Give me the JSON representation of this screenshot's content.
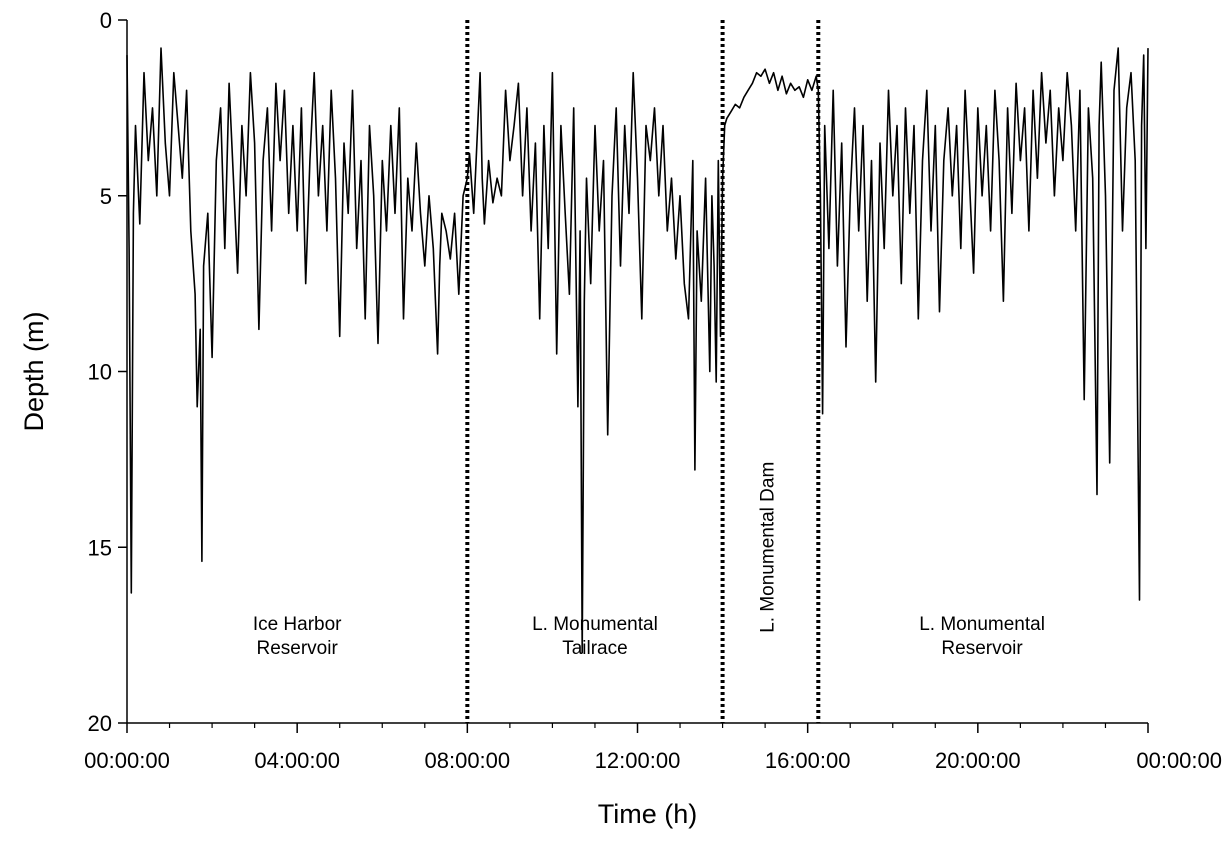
{
  "chart_data": {
    "type": "line",
    "xlabel": "Time (h)",
    "ylabel": "Depth (m)",
    "xlim": [
      0,
      24
    ],
    "ylim": [
      0,
      20
    ],
    "y_inverted": true,
    "grid": false,
    "legend": "none",
    "x_ticks": [
      {
        "value": 0,
        "label": "00:00:00"
      },
      {
        "value": 4,
        "label": "04:00:00"
      },
      {
        "value": 8,
        "label": "08:00:00"
      },
      {
        "value": 12,
        "label": "12:00:00"
      },
      {
        "value": 16,
        "label": "16:00:00"
      },
      {
        "value": 20,
        "label": "20:00:00"
      },
      {
        "value": 24,
        "label": "00:00:00"
      }
    ],
    "y_ticks": [
      {
        "value": 0,
        "label": "0"
      },
      {
        "value": 5,
        "label": "5"
      },
      {
        "value": 10,
        "label": "10"
      },
      {
        "value": 15,
        "label": "15"
      },
      {
        "value": 20,
        "label": "20"
      }
    ],
    "boundaries": [
      8.0,
      14.0,
      16.25
    ],
    "regions": [
      {
        "lines": [
          "Ice Harbor",
          "Reservoir"
        ],
        "x": 4.0,
        "y": 17.7,
        "rotated": false
      },
      {
        "lines": [
          "L. Monumental",
          "Tailrace"
        ],
        "x": 11.0,
        "y": 17.7,
        "rotated": false
      },
      {
        "lines": [
          "L. Monumental Dam"
        ],
        "x": 15.2,
        "y": 15.0,
        "rotated": true
      },
      {
        "lines": [
          "L. Monumental",
          "Reservoir"
        ],
        "x": 20.1,
        "y": 17.7,
        "rotated": false
      }
    ],
    "series": [
      {
        "values": [
          [
            0.0,
            1.0
          ],
          [
            0.05,
            6.5
          ],
          [
            0.1,
            16.3
          ],
          [
            0.15,
            5.5
          ],
          [
            0.2,
            3.0
          ],
          [
            0.3,
            5.8
          ],
          [
            0.4,
            1.5
          ],
          [
            0.5,
            4.0
          ],
          [
            0.6,
            2.5
          ],
          [
            0.7,
            5.0
          ],
          [
            0.8,
            0.8
          ],
          [
            0.9,
            3.5
          ],
          [
            1.0,
            5.0
          ],
          [
            1.1,
            1.5
          ],
          [
            1.2,
            3.0
          ],
          [
            1.3,
            4.5
          ],
          [
            1.4,
            2.0
          ],
          [
            1.5,
            6.0
          ],
          [
            1.6,
            7.8
          ],
          [
            1.65,
            11.0
          ],
          [
            1.72,
            8.8
          ],
          [
            1.76,
            15.4
          ],
          [
            1.8,
            7.0
          ],
          [
            1.9,
            5.5
          ],
          [
            2.0,
            9.6
          ],
          [
            2.1,
            4.0
          ],
          [
            2.2,
            2.5
          ],
          [
            2.3,
            6.5
          ],
          [
            2.4,
            1.8
          ],
          [
            2.5,
            4.5
          ],
          [
            2.6,
            7.2
          ],
          [
            2.7,
            3.0
          ],
          [
            2.8,
            5.0
          ],
          [
            2.9,
            1.5
          ],
          [
            3.0,
            3.5
          ],
          [
            3.1,
            8.8
          ],
          [
            3.2,
            4.0
          ],
          [
            3.3,
            2.5
          ],
          [
            3.4,
            6.0
          ],
          [
            3.5,
            1.8
          ],
          [
            3.6,
            4.0
          ],
          [
            3.7,
            2.0
          ],
          [
            3.8,
            5.5
          ],
          [
            3.9,
            3.0
          ],
          [
            4.0,
            6.0
          ],
          [
            4.1,
            2.5
          ],
          [
            4.2,
            7.5
          ],
          [
            4.3,
            4.0
          ],
          [
            4.4,
            1.5
          ],
          [
            4.5,
            5.0
          ],
          [
            4.6,
            3.0
          ],
          [
            4.7,
            6.0
          ],
          [
            4.8,
            2.0
          ],
          [
            4.9,
            4.5
          ],
          [
            5.0,
            9.0
          ],
          [
            5.1,
            3.5
          ],
          [
            5.2,
            5.5
          ],
          [
            5.3,
            2.0
          ],
          [
            5.4,
            6.5
          ],
          [
            5.5,
            4.0
          ],
          [
            5.6,
            8.5
          ],
          [
            5.7,
            3.0
          ],
          [
            5.8,
            5.0
          ],
          [
            5.9,
            9.2
          ],
          [
            6.0,
            4.0
          ],
          [
            6.1,
            6.0
          ],
          [
            6.2,
            3.0
          ],
          [
            6.3,
            5.5
          ],
          [
            6.4,
            2.5
          ],
          [
            6.5,
            8.5
          ],
          [
            6.6,
            4.5
          ],
          [
            6.7,
            6.0
          ],
          [
            6.8,
            3.5
          ],
          [
            6.9,
            5.5
          ],
          [
            7.0,
            7.0
          ],
          [
            7.1,
            5.0
          ],
          [
            7.2,
            6.5
          ],
          [
            7.3,
            9.5
          ],
          [
            7.35,
            7.0
          ],
          [
            7.4,
            5.5
          ],
          [
            7.5,
            6.0
          ],
          [
            7.6,
            6.8
          ],
          [
            7.7,
            5.5
          ],
          [
            7.8,
            7.8
          ],
          [
            7.9,
            5.0
          ],
          [
            8.0,
            4.5
          ],
          [
            8.05,
            3.8
          ],
          [
            8.15,
            5.5
          ],
          [
            8.2,
            4.2
          ],
          [
            8.3,
            1.5
          ],
          [
            8.35,
            4.5
          ],
          [
            8.4,
            5.8
          ],
          [
            8.5,
            4.0
          ],
          [
            8.6,
            5.2
          ],
          [
            8.7,
            4.5
          ],
          [
            8.8,
            5.0
          ],
          [
            8.9,
            2.0
          ],
          [
            9.0,
            4.0
          ],
          [
            9.1,
            3.0
          ],
          [
            9.2,
            1.8
          ],
          [
            9.3,
            5.0
          ],
          [
            9.4,
            2.5
          ],
          [
            9.5,
            6.0
          ],
          [
            9.6,
            3.5
          ],
          [
            9.7,
            8.5
          ],
          [
            9.8,
            3.0
          ],
          [
            9.9,
            6.5
          ],
          [
            10.0,
            1.5
          ],
          [
            10.1,
            9.5
          ],
          [
            10.2,
            3.0
          ],
          [
            10.3,
            5.5
          ],
          [
            10.4,
            7.8
          ],
          [
            10.5,
            2.5
          ],
          [
            10.6,
            11.0
          ],
          [
            10.65,
            6.0
          ],
          [
            10.7,
            18.0
          ],
          [
            10.75,
            8.0
          ],
          [
            10.8,
            4.5
          ],
          [
            10.9,
            7.5
          ],
          [
            11.0,
            3.0
          ],
          [
            11.1,
            6.0
          ],
          [
            11.2,
            4.0
          ],
          [
            11.3,
            11.8
          ],
          [
            11.4,
            5.0
          ],
          [
            11.5,
            2.5
          ],
          [
            11.6,
            7.0
          ],
          [
            11.7,
            3.0
          ],
          [
            11.8,
            5.5
          ],
          [
            11.9,
            1.5
          ],
          [
            12.0,
            4.5
          ],
          [
            12.1,
            8.5
          ],
          [
            12.2,
            3.0
          ],
          [
            12.3,
            4.0
          ],
          [
            12.4,
            2.5
          ],
          [
            12.5,
            5.0
          ],
          [
            12.6,
            3.0
          ],
          [
            12.7,
            6.0
          ],
          [
            12.8,
            4.5
          ],
          [
            12.9,
            6.8
          ],
          [
            13.0,
            5.0
          ],
          [
            13.1,
            7.5
          ],
          [
            13.2,
            8.5
          ],
          [
            13.3,
            4.0
          ],
          [
            13.35,
            12.8
          ],
          [
            13.4,
            6.0
          ],
          [
            13.5,
            8.0
          ],
          [
            13.6,
            4.5
          ],
          [
            13.7,
            10.0
          ],
          [
            13.75,
            5.0
          ],
          [
            13.8,
            7.0
          ],
          [
            13.85,
            10.3
          ],
          [
            13.9,
            4.0
          ],
          [
            13.95,
            9.0
          ],
          [
            14.0,
            4.5
          ],
          [
            14.05,
            3.0
          ],
          [
            14.1,
            2.8
          ],
          [
            14.2,
            2.6
          ],
          [
            14.3,
            2.4
          ],
          [
            14.4,
            2.5
          ],
          [
            14.5,
            2.2
          ],
          [
            14.6,
            2.0
          ],
          [
            14.7,
            1.8
          ],
          [
            14.8,
            1.5
          ],
          [
            14.9,
            1.6
          ],
          [
            15.0,
            1.4
          ],
          [
            15.1,
            1.8
          ],
          [
            15.2,
            1.5
          ],
          [
            15.3,
            2.0
          ],
          [
            15.4,
            1.6
          ],
          [
            15.5,
            2.1
          ],
          [
            15.6,
            1.8
          ],
          [
            15.7,
            2.0
          ],
          [
            15.8,
            1.9
          ],
          [
            15.9,
            2.2
          ],
          [
            16.0,
            1.7
          ],
          [
            16.1,
            2.0
          ],
          [
            16.2,
            1.6
          ],
          [
            16.25,
            2.0
          ],
          [
            16.3,
            5.0
          ],
          [
            16.35,
            11.2
          ],
          [
            16.4,
            3.0
          ],
          [
            16.5,
            6.5
          ],
          [
            16.6,
            2.0
          ],
          [
            16.7,
            7.0
          ],
          [
            16.8,
            3.5
          ],
          [
            16.9,
            9.3
          ],
          [
            17.0,
            5.0
          ],
          [
            17.1,
            2.5
          ],
          [
            17.2,
            6.0
          ],
          [
            17.3,
            3.0
          ],
          [
            17.4,
            8.0
          ],
          [
            17.5,
            4.0
          ],
          [
            17.6,
            10.3
          ],
          [
            17.7,
            3.5
          ],
          [
            17.8,
            6.5
          ],
          [
            17.9,
            2.0
          ],
          [
            18.0,
            5.0
          ],
          [
            18.1,
            3.0
          ],
          [
            18.2,
            7.5
          ],
          [
            18.3,
            2.5
          ],
          [
            18.4,
            5.5
          ],
          [
            18.5,
            3.0
          ],
          [
            18.6,
            8.5
          ],
          [
            18.7,
            4.0
          ],
          [
            18.8,
            2.0
          ],
          [
            18.9,
            6.0
          ],
          [
            19.0,
            3.0
          ],
          [
            19.1,
            8.3
          ],
          [
            19.2,
            4.0
          ],
          [
            19.3,
            2.5
          ],
          [
            19.4,
            5.0
          ],
          [
            19.5,
            3.0
          ],
          [
            19.6,
            6.5
          ],
          [
            19.7,
            2.0
          ],
          [
            19.8,
            4.5
          ],
          [
            19.9,
            7.2
          ],
          [
            20.0,
            2.5
          ],
          [
            20.1,
            5.0
          ],
          [
            20.2,
            3.0
          ],
          [
            20.3,
            6.0
          ],
          [
            20.4,
            2.0
          ],
          [
            20.5,
            4.0
          ],
          [
            20.6,
            8.0
          ],
          [
            20.7,
            2.5
          ],
          [
            20.8,
            5.5
          ],
          [
            20.9,
            1.8
          ],
          [
            21.0,
            4.0
          ],
          [
            21.1,
            2.5
          ],
          [
            21.2,
            6.0
          ],
          [
            21.3,
            2.0
          ],
          [
            21.4,
            4.5
          ],
          [
            21.5,
            1.5
          ],
          [
            21.6,
            3.5
          ],
          [
            21.7,
            2.0
          ],
          [
            21.8,
            5.0
          ],
          [
            21.9,
            2.5
          ],
          [
            22.0,
            4.0
          ],
          [
            22.1,
            1.5
          ],
          [
            22.2,
            3.0
          ],
          [
            22.3,
            6.0
          ],
          [
            22.4,
            2.0
          ],
          [
            22.5,
            10.8
          ],
          [
            22.6,
            2.5
          ],
          [
            22.7,
            4.5
          ],
          [
            22.8,
            13.5
          ],
          [
            22.85,
            3.0
          ],
          [
            22.9,
            1.2
          ],
          [
            23.0,
            5.0
          ],
          [
            23.1,
            12.6
          ],
          [
            23.2,
            2.0
          ],
          [
            23.3,
            0.8
          ],
          [
            23.4,
            6.0
          ],
          [
            23.5,
            2.5
          ],
          [
            23.6,
            1.5
          ],
          [
            23.7,
            4.0
          ],
          [
            23.8,
            16.5
          ],
          [
            23.85,
            3.0
          ],
          [
            23.9,
            1.0
          ],
          [
            23.95,
            6.5
          ],
          [
            24.0,
            0.8
          ]
        ]
      }
    ]
  }
}
